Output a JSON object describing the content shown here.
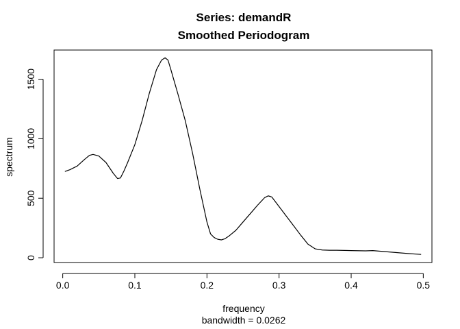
{
  "chart_data": {
    "type": "line",
    "title": "Series: demandR",
    "subtitle": "Smoothed Periodogram",
    "xlabel": "frequency",
    "xlabel_sub": "bandwidth = 0.0262",
    "ylabel": "spectrum",
    "xlim": [
      -0.012,
      0.512
    ],
    "ylim": [
      -40,
      1745
    ],
    "xticks": [
      0.0,
      0.1,
      0.2,
      0.3,
      0.4,
      0.5
    ],
    "xtick_labels": [
      "0.0",
      "0.1",
      "0.2",
      "0.3",
      "0.4",
      "0.5"
    ],
    "yticks": [
      0,
      500,
      1000,
      1500
    ],
    "ytick_labels": [
      "0",
      "500",
      "1000",
      "1500"
    ],
    "grid": false,
    "line_color": "#000000",
    "series": [
      {
        "x": [
          0.003,
          0.01,
          0.02,
          0.03,
          0.037,
          0.042,
          0.05,
          0.06,
          0.07,
          0.076,
          0.08,
          0.085,
          0.09,
          0.1,
          0.11,
          0.12,
          0.13,
          0.137,
          0.142,
          0.146,
          0.15,
          0.16,
          0.17,
          0.18,
          0.19,
          0.2,
          0.205,
          0.21,
          0.215,
          0.22,
          0.225,
          0.23,
          0.24,
          0.25,
          0.26,
          0.27,
          0.28,
          0.285,
          0.29,
          0.3,
          0.31,
          0.32,
          0.33,
          0.34,
          0.35,
          0.36,
          0.37,
          0.38,
          0.4,
          0.42,
          0.43,
          0.44,
          0.46,
          0.48,
          0.497
        ],
        "y": [
          725,
          740,
          770,
          825,
          860,
          868,
          855,
          800,
          710,
          665,
          670,
          730,
          800,
          950,
          1150,
          1380,
          1580,
          1660,
          1680,
          1660,
          1580,
          1370,
          1150,
          880,
          580,
          300,
          200,
          170,
          155,
          150,
          160,
          180,
          230,
          300,
          370,
          440,
          505,
          520,
          510,
          430,
          350,
          270,
          190,
          115,
          75,
          65,
          63,
          63,
          60,
          58,
          60,
          55,
          45,
          35,
          28
        ]
      }
    ]
  }
}
